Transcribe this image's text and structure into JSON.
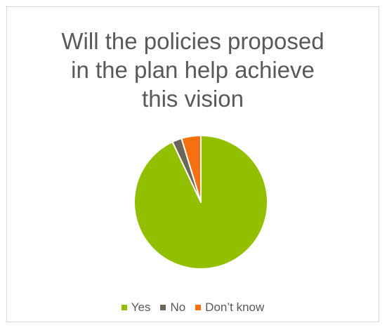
{
  "chart_data": {
    "type": "pie",
    "title_lines": [
      "Will the policies proposed",
      "in the plan help achieve",
      "this vision"
    ],
    "slices": [
      {
        "label": "Yes",
        "value": 93,
        "color": "#92c000"
      },
      {
        "label": "No",
        "value": 2.3,
        "color": "#6b6658"
      },
      {
        "label": "Don’t know",
        "value": 4.7,
        "color": "#f5700f"
      }
    ],
    "legend_position": "bottom"
  }
}
